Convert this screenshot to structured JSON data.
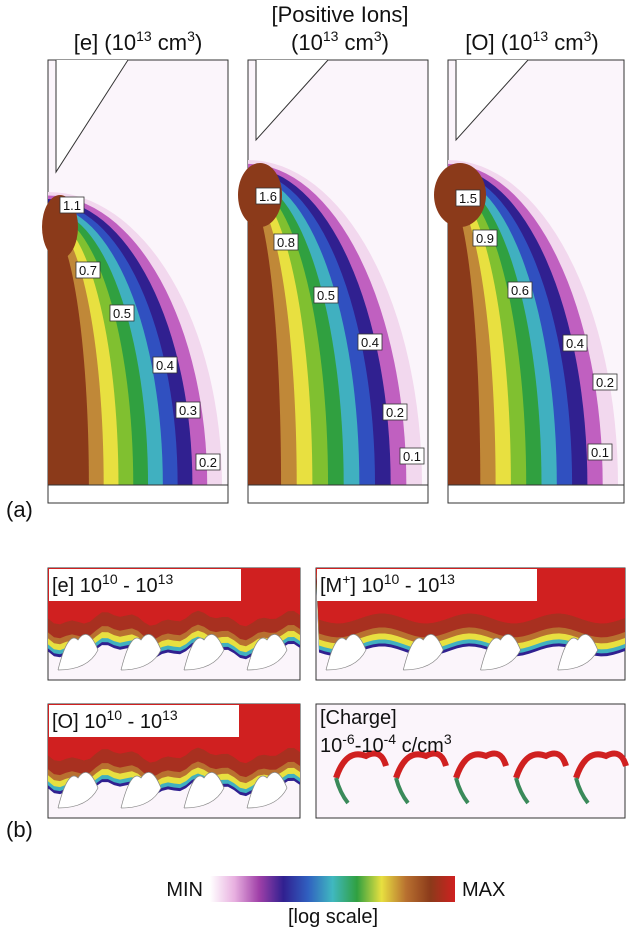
{
  "figure": {
    "panel_a": {
      "label": "(a)",
      "titles": [
        {
          "parts": [
            "[e] (10",
            "13",
            " cm",
            "3",
            ")"
          ]
        },
        {
          "heading": "[Positive Ions]",
          "parts": [
            "(10",
            "13",
            " cm",
            "3",
            ")"
          ]
        },
        {
          "parts": [
            "[O] (10",
            "13",
            " cm",
            "3",
            ")"
          ]
        }
      ],
      "contour_labels": [
        [
          1.1,
          0.7,
          0.5,
          0.4,
          0.3,
          0.2
        ],
        [
          1.6,
          0.8,
          0.5,
          0.4,
          0.2,
          0.1
        ],
        [
          1.5,
          0.9,
          0.6,
          0.4,
          0.2,
          0.1
        ]
      ]
    },
    "panel_b": {
      "label": "(b)",
      "titles": [
        {
          "parts": [
            "[e] 10",
            "10",
            " - 10",
            "13"
          ]
        },
        {
          "parts": [
            "[M",
            "+",
            "] 10",
            "10",
            " - 10",
            "13"
          ]
        },
        {
          "parts": [
            "[O] 10",
            "10",
            " - 10",
            "13"
          ]
        },
        {
          "heading": "[Charge]",
          "parts": [
            "10",
            "-6",
            "-10",
            "-4",
            " c/cm",
            "3"
          ]
        }
      ]
    },
    "colorbar": {
      "min": "MIN",
      "max": "MAX",
      "caption": "[log scale]"
    }
  }
}
